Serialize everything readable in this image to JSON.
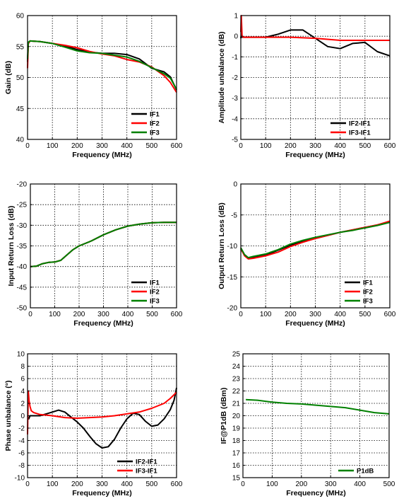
{
  "chart_data": [
    {
      "type": "line",
      "xlabel": "Frequency (MHz)",
      "ylabel": "Gain (dB)",
      "xlim": [
        0,
        600
      ],
      "ylim": [
        40,
        60
      ],
      "xticks": [
        0,
        100,
        200,
        300,
        400,
        500,
        600
      ],
      "yticks": [
        40,
        45,
        50,
        55,
        60
      ],
      "grid": true,
      "legend_position": "bottom-right",
      "series": [
        {
          "name": "IF1",
          "color": "#000000",
          "x": [
            0,
            3,
            10,
            50,
            100,
            150,
            200,
            250,
            300,
            350,
            400,
            450,
            500,
            550,
            575,
            600
          ],
          "y": [
            52.5,
            55.5,
            55.9,
            55.8,
            55.5,
            55.1,
            54.5,
            54.1,
            53.9,
            53.9,
            53.7,
            53.0,
            51.5,
            50.9,
            50.1,
            48.0
          ]
        },
        {
          "name": "IF2",
          "color": "#ff0000",
          "x": [
            0,
            3,
            10,
            50,
            100,
            150,
            200,
            250,
            300,
            350,
            400,
            450,
            500,
            550,
            575,
            600
          ],
          "y": [
            51.5,
            55.5,
            55.9,
            55.8,
            55.5,
            55.2,
            54.8,
            54.2,
            53.8,
            53.5,
            52.9,
            52.5,
            51.7,
            50.3,
            49.2,
            47.6
          ]
        },
        {
          "name": "IF3",
          "color": "#008000",
          "x": [
            0,
            3,
            10,
            50,
            100,
            150,
            200,
            250,
            300,
            350,
            400,
            450,
            500,
            550,
            575,
            600
          ],
          "y": [
            53.0,
            55.7,
            55.9,
            55.8,
            55.5,
            54.9,
            54.3,
            54.0,
            53.9,
            53.6,
            53.3,
            52.6,
            51.6,
            50.6,
            49.9,
            48.1
          ]
        }
      ]
    },
    {
      "type": "line",
      "xlabel": "Frequency (MHz)",
      "ylabel": "Amplitude unbalance (dB)",
      "xlim": [
        0,
        600
      ],
      "ylim": [
        -5,
        1
      ],
      "xticks": [
        0,
        100,
        200,
        300,
        400,
        500,
        600
      ],
      "yticks": [
        -5,
        -4,
        -3,
        -2,
        -1,
        0,
        1
      ],
      "grid": true,
      "legend_position": "bottom-right",
      "series": [
        {
          "name": "IF2-IF1",
          "color": "#000000",
          "x": [
            0,
            2,
            5,
            10,
            50,
            100,
            150,
            200,
            250,
            300,
            350,
            400,
            450,
            500,
            550,
            600
          ],
          "y": [
            -0.1,
            0.1,
            -0.05,
            -0.05,
            -0.05,
            -0.05,
            0.1,
            0.3,
            0.3,
            -0.1,
            -0.5,
            -0.6,
            -0.35,
            -0.3,
            -0.75,
            -0.95
          ]
        },
        {
          "name": "IF3-IF1",
          "color": "#ff0000",
          "x": [
            0,
            2,
            5,
            10,
            100,
            200,
            300,
            400,
            500,
            600
          ],
          "y": [
            0.2,
            1.0,
            0.0,
            -0.05,
            -0.05,
            -0.05,
            -0.1,
            -0.2,
            -0.2,
            -0.2
          ]
        }
      ]
    },
    {
      "type": "line",
      "xlabel": "Frequency (MHz)",
      "ylabel": "Input Return Loss (dB)",
      "xlim": [
        0,
        600
      ],
      "ylim": [
        -50,
        -20
      ],
      "xticks": [
        0,
        100,
        200,
        300,
        400,
        500,
        600
      ],
      "yticks": [
        -50,
        -45,
        -40,
        -35,
        -30,
        -25,
        -20
      ],
      "grid": true,
      "legend_position": "bottom-right",
      "series": [
        {
          "name": "IF1",
          "color": "#000000",
          "x": [
            0,
            25,
            50,
            75,
            100,
            125,
            150,
            175,
            200,
            250,
            300,
            350,
            400,
            450,
            500,
            550,
            600
          ],
          "y": [
            -40.0,
            -39.9,
            -39.3,
            -39.0,
            -38.9,
            -38.5,
            -37.2,
            -35.9,
            -35.0,
            -33.8,
            -32.3,
            -31.1,
            -30.2,
            -29.7,
            -29.4,
            -29.3,
            -29.3
          ]
        },
        {
          "name": "IF2",
          "color": "#ff0000",
          "x": [
            0,
            25,
            50,
            75,
            100,
            125,
            150,
            175,
            200,
            250,
            300,
            350,
            400,
            450,
            500,
            550,
            600
          ],
          "y": [
            -40.0,
            -39.9,
            -39.3,
            -39.0,
            -38.9,
            -38.5,
            -37.2,
            -35.9,
            -35.0,
            -33.8,
            -32.3,
            -31.1,
            -30.2,
            -29.7,
            -29.4,
            -29.3,
            -29.3
          ]
        },
        {
          "name": "IF3",
          "color": "#008000",
          "x": [
            0,
            25,
            50,
            75,
            100,
            125,
            150,
            175,
            200,
            250,
            300,
            350,
            400,
            450,
            500,
            550,
            600
          ],
          "y": [
            -40.0,
            -39.9,
            -39.3,
            -39.0,
            -38.9,
            -38.5,
            -37.2,
            -35.9,
            -35.0,
            -33.8,
            -32.3,
            -31.1,
            -30.2,
            -29.7,
            -29.4,
            -29.3,
            -29.3
          ]
        }
      ]
    },
    {
      "type": "line",
      "xlabel": "Frequency (MHz)",
      "ylabel": "Output Return Loss (dB)",
      "xlim": [
        0,
        600
      ],
      "ylim": [
        -20,
        0
      ],
      "xticks": [
        0,
        100,
        200,
        300,
        400,
        500,
        600
      ],
      "yticks": [
        -20,
        -15,
        -10,
        -5,
        0
      ],
      "grid": true,
      "legend_position": "bottom-right",
      "series": [
        {
          "name": "IF1",
          "color": "#000000",
          "x": [
            0,
            15,
            30,
            50,
            100,
            150,
            200,
            250,
            300,
            350,
            400,
            450,
            500,
            550,
            600
          ],
          "y": [
            -10.5,
            -11.5,
            -12.0,
            -11.8,
            -11.5,
            -10.7,
            -9.9,
            -9.3,
            -8.8,
            -8.3,
            -7.8,
            -7.4,
            -7.0,
            -6.6,
            -6.1
          ]
        },
        {
          "name": "IF2",
          "color": "#ff0000",
          "x": [
            0,
            15,
            30,
            50,
            100,
            150,
            200,
            250,
            300,
            350,
            400,
            450,
            500,
            550,
            600
          ],
          "y": [
            -10.4,
            -11.6,
            -12.1,
            -12.0,
            -11.6,
            -11.0,
            -10.1,
            -9.4,
            -8.8,
            -8.3,
            -7.8,
            -7.4,
            -7.0,
            -6.6,
            -6.0
          ]
        },
        {
          "name": "IF3",
          "color": "#008000",
          "x": [
            0,
            15,
            30,
            50,
            100,
            150,
            200,
            250,
            300,
            350,
            400,
            450,
            500,
            550,
            600
          ],
          "y": [
            -10.3,
            -11.4,
            -11.9,
            -11.7,
            -11.3,
            -10.6,
            -9.7,
            -9.1,
            -8.6,
            -8.2,
            -7.8,
            -7.5,
            -7.1,
            -6.7,
            -6.2
          ]
        }
      ]
    },
    {
      "type": "line",
      "xlabel": "Frequency (MHz)",
      "ylabel": "Phase unbalance (°)",
      "xlim": [
        0,
        600
      ],
      "ylim": [
        -10,
        10
      ],
      "xticks": [
        0,
        100,
        200,
        300,
        400,
        500,
        600
      ],
      "yticks": [
        -10,
        -8,
        -6,
        -4,
        -2,
        0,
        2,
        4,
        6,
        8,
        10
      ],
      "grid": true,
      "legend_position": "bottom-right",
      "series": [
        {
          "name": "IF2-IF1",
          "color": "#000000",
          "x": [
            0,
            5,
            10,
            25,
            50,
            75,
            100,
            125,
            150,
            175,
            200,
            225,
            250,
            275,
            300,
            325,
            350,
            375,
            400,
            425,
            450,
            475,
            500,
            525,
            550,
            575,
            590,
            600
          ],
          "y": [
            0.0,
            -0.5,
            0.0,
            0.0,
            0.0,
            0.3,
            0.6,
            0.9,
            0.6,
            -0.2,
            -1.0,
            -2.0,
            -3.3,
            -4.5,
            -5.2,
            -5.0,
            -3.8,
            -2.0,
            -0.5,
            0.4,
            0.2,
            -0.9,
            -1.7,
            -1.5,
            -0.5,
            1.0,
            2.5,
            4.5
          ]
        },
        {
          "name": "IF3-IF1",
          "color": "#ff0000",
          "x": [
            0,
            3,
            6,
            10,
            15,
            25,
            50,
            100,
            150,
            200,
            250,
            300,
            350,
            400,
            450,
            500,
            550,
            575,
            600
          ],
          "y": [
            -3.0,
            4.0,
            2.5,
            1.5,
            0.8,
            0.5,
            0.2,
            0.0,
            -0.3,
            -0.4,
            -0.3,
            -0.2,
            0.0,
            0.3,
            0.6,
            1.2,
            2.0,
            2.8,
            3.8
          ]
        }
      ]
    },
    {
      "type": "line",
      "xlabel": "Frequency (MHz)",
      "ylabel": "IF@P1dB (dBm)",
      "xlim": [
        0,
        500
      ],
      "ylim": [
        15,
        25
      ],
      "xticks": [
        0,
        100,
        200,
        300,
        400,
        500
      ],
      "yticks": [
        15,
        16,
        17,
        18,
        19,
        20,
        21,
        22,
        23,
        24,
        25
      ],
      "grid": true,
      "legend_position": "bottom-right",
      "series": [
        {
          "name": "P1dB",
          "color": "#008000",
          "x": [
            10,
            50,
            100,
            150,
            200,
            250,
            300,
            350,
            400,
            450,
            500
          ],
          "y": [
            21.3,
            21.25,
            21.1,
            21.0,
            20.95,
            20.85,
            20.75,
            20.65,
            20.45,
            20.25,
            20.15
          ]
        }
      ]
    }
  ]
}
